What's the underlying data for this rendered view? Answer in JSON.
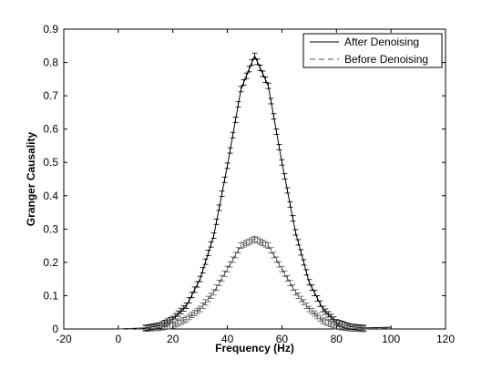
{
  "chart_data": {
    "type": "line",
    "xlabel": "Frequency (Hz)",
    "ylabel": "Granger Causality",
    "xlim": [
      -20,
      120
    ],
    "ylim": [
      0,
      0.9
    ],
    "xticks": [
      -20,
      0,
      20,
      40,
      60,
      80,
      100,
      120
    ],
    "yticks": [
      0,
      0.1,
      0.2,
      0.3,
      0.4,
      0.5,
      0.6,
      0.7,
      0.8,
      0.9
    ],
    "grid": false,
    "legend_position": "top-right",
    "error_bars": true,
    "series": [
      {
        "name": "After Denoising",
        "style": "solid",
        "color": "#000000",
        "x": [
          0,
          10,
          15,
          20,
          25,
          30,
          35,
          40,
          45,
          50,
          55,
          60,
          65,
          70,
          75,
          80,
          85,
          90,
          100
        ],
        "y": [
          0.0,
          0.003,
          0.01,
          0.03,
          0.07,
          0.15,
          0.28,
          0.49,
          0.72,
          0.82,
          0.73,
          0.5,
          0.29,
          0.14,
          0.06,
          0.02,
          0.007,
          0.003,
          0.005
        ]
      },
      {
        "name": "Before Denoising",
        "style": "dashed",
        "color": "#555555",
        "x": [
          0,
          10,
          15,
          20,
          25,
          30,
          35,
          40,
          45,
          50,
          55,
          60,
          65,
          70,
          75,
          80,
          85,
          90,
          100
        ],
        "y": [
          0.0,
          0.001,
          0.004,
          0.01,
          0.03,
          0.06,
          0.11,
          0.18,
          0.25,
          0.27,
          0.25,
          0.18,
          0.11,
          0.06,
          0.025,
          0.008,
          0.002,
          0.0,
          0.003
        ]
      }
    ]
  }
}
